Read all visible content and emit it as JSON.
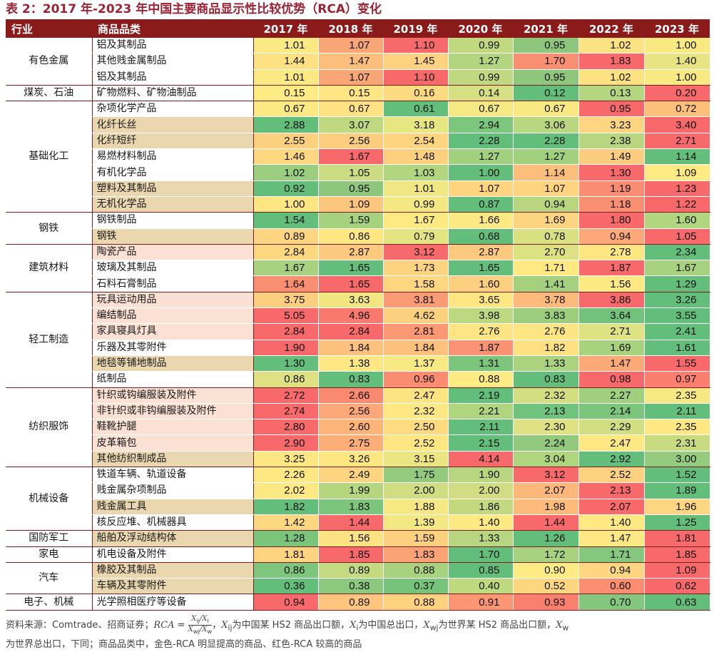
{
  "title": "表 2：2017 年-2023 年中国主要商品显示性比较优势（RCA）变化",
  "headers": [
    "行业",
    "商品品类",
    "2017 年",
    "2018 年",
    "2019 年",
    "2020 年",
    "2021 年",
    "2022 年",
    "2023 年"
  ],
  "groups": [
    {
      "industry": "有色金属",
      "rows": [
        {
          "product": "铝及其制品",
          "hl": "w",
          "values": [
            "1.01",
            "1.07",
            "1.10",
            "0.99",
            "0.95",
            "1.02",
            "1.00"
          ],
          "colors": [
            "#fbe983",
            "#f8a676",
            "#f8696b",
            "#c0d980",
            "#8ec67e",
            "#fde282",
            "#f9e983"
          ]
        },
        {
          "product": "其他贱金属制品",
          "hl": "w",
          "values": [
            "1.44",
            "1.47",
            "1.45",
            "1.27",
            "1.70",
            "1.83",
            "1.40"
          ],
          "colors": [
            "#fde182",
            "#fcbe7b",
            "#fed280",
            "#b4d57f",
            "#f98f71",
            "#f8696b",
            "#e8e483"
          ]
        },
        {
          "product": "铝及其制品",
          "hl": "w",
          "values": [
            "1.01",
            "1.07",
            "1.10",
            "0.99",
            "0.95",
            "1.02",
            "1.00"
          ],
          "colors": [
            "#fbe983",
            "#f8a676",
            "#f8696b",
            "#c0d980",
            "#8ec67e",
            "#fde282",
            "#f9e983"
          ]
        }
      ]
    },
    {
      "industry": "煤炭、石油",
      "rows": [
        {
          "product": "矿物燃料、矿物油制品",
          "hl": "w",
          "values": [
            "0.15",
            "0.15",
            "0.16",
            "0.14",
            "0.12",
            "0.13",
            "0.20"
          ],
          "colors": [
            "#ffeb84",
            "#ffe583",
            "#fedb81",
            "#d6df82",
            "#63be7b",
            "#b5d680",
            "#f8696b"
          ]
        }
      ]
    },
    {
      "industry": "基础化工",
      "rows": [
        {
          "product": "杂项化学产品",
          "hl": "w",
          "values": [
            "0.67",
            "0.67",
            "0.61",
            "0.67",
            "0.67",
            "0.95",
            "0.72"
          ],
          "colors": [
            "#fbe983",
            "#ffe383",
            "#63be7b",
            "#f5e984",
            "#f8e983",
            "#f8696b",
            "#fcc07b"
          ]
        },
        {
          "product": "化纤长丝",
          "hl": "g",
          "values": [
            "2.88",
            "3.07",
            "3.18",
            "2.94",
            "3.06",
            "3.23",
            "3.40"
          ],
          "colors": [
            "#63be7b",
            "#bfd980",
            "#e8e583",
            "#7dc67d",
            "#b9d780",
            "#fed580",
            "#f8696b"
          ]
        },
        {
          "product": "化纤短纤",
          "hl": "g",
          "values": [
            "2.55",
            "2.56",
            "2.54",
            "2.28",
            "2.28",
            "2.38",
            "2.71"
          ],
          "colors": [
            "#fbd07f",
            "#fccd7e",
            "#fdd580",
            "#63be7b",
            "#63be7b",
            "#b8d67f",
            "#f8696b"
          ]
        },
        {
          "product": "易燃材料制品",
          "hl": "w",
          "values": [
            "1.46",
            "1.67",
            "1.48",
            "1.27",
            "1.27",
            "1.49",
            "1.14"
          ],
          "colors": [
            "#fed881",
            "#f8696b",
            "#fdd07f",
            "#a1d07e",
            "#a1d07e",
            "#fccd7e",
            "#63be7b"
          ]
        },
        {
          "product": "有机化学品",
          "hl": "w",
          "values": [
            "1.02",
            "1.05",
            "1.03",
            "1.00",
            "1.14",
            "1.30",
            "1.09"
          ],
          "colors": [
            "#9bcf7f",
            "#ccdc82",
            "#b2d580",
            "#63be7b",
            "#fcbf7b",
            "#f8696b",
            "#ffea84"
          ]
        },
        {
          "product": "塑料及其制品",
          "hl": "g",
          "values": [
            "0.92",
            "0.95",
            "1.01",
            "1.07",
            "1.07",
            "1.19",
            "1.23"
          ],
          "colors": [
            "#63be7b",
            "#8ec67e",
            "#f0e683",
            "#fed480",
            "#fed480",
            "#fa8c71",
            "#f8696b"
          ]
        },
        {
          "product": "无机化学品",
          "hl": "g",
          "values": [
            "1.00",
            "1.09",
            "0.99",
            "0.87",
            "0.94",
            "1.18",
            "1.22"
          ],
          "colors": [
            "#fee683",
            "#fdc67d",
            "#f3e884",
            "#63be7b",
            "#b8d67f",
            "#fa8f72",
            "#f8696b"
          ]
        }
      ]
    },
    {
      "industry": "钢铁",
      "rows": [
        {
          "product": "钢铁制品",
          "hl": "w",
          "values": [
            "1.54",
            "1.59",
            "1.67",
            "1.66",
            "1.69",
            "1.80",
            "1.60"
          ],
          "colors": [
            "#63be7b",
            "#a6d27f",
            "#fee983",
            "#fde983",
            "#fdd480",
            "#f8696b",
            "#b2d580"
          ]
        },
        {
          "product": "钢铁",
          "hl": "g",
          "values": [
            "0.89",
            "0.86",
            "0.79",
            "0.68",
            "0.78",
            "0.94",
            "1.05"
          ],
          "colors": [
            "#fed581",
            "#fee683",
            "#e5e483",
            "#63be7b",
            "#d8e082",
            "#fca878",
            "#f8696b"
          ]
        }
      ]
    },
    {
      "industry": "建筑材料",
      "rows": [
        {
          "product": "陶瓷产品",
          "hl": "r",
          "values": [
            "2.84",
            "2.87",
            "3.12",
            "2.87",
            "2.70",
            "2.78",
            "2.34"
          ],
          "colors": [
            "#fed881",
            "#fdc97e",
            "#f8696b",
            "#fdc97e",
            "#dce182",
            "#fee783",
            "#63be7b"
          ]
        },
        {
          "product": "玻璃及其制品",
          "hl": "w",
          "values": [
            "1.67",
            "1.65",
            "1.73",
            "1.65",
            "1.71",
            "1.87",
            "1.67"
          ],
          "colors": [
            "#a8d27f",
            "#63be7b",
            "#fcd380",
            "#63be7b",
            "#fee983",
            "#f8696b",
            "#a8d27f"
          ]
        },
        {
          "product": "石料石膏制品",
          "hl": "w",
          "values": [
            "1.64",
            "1.65",
            "1.58",
            "1.60",
            "1.41",
            "1.56",
            "1.29"
          ],
          "colors": [
            "#f98f71",
            "#f8696b",
            "#fed680",
            "#fcd07f",
            "#a5d17e",
            "#fee983",
            "#63be7b"
          ]
        }
      ]
    },
    {
      "industry": "轻工制造",
      "rows": [
        {
          "product": "玩具运动用品",
          "hl": "r",
          "values": [
            "3.75",
            "3.63",
            "3.81",
            "3.65",
            "3.78",
            "3.86",
            "3.26"
          ],
          "colors": [
            "#fcce7f",
            "#f2e683",
            "#f99b74",
            "#fee683",
            "#fdba7b",
            "#f8696b",
            "#63be7b"
          ]
        },
        {
          "product": "编结制品",
          "hl": "r",
          "values": [
            "5.05",
            "4.96",
            "4.62",
            "3.98",
            "3.83",
            "3.64",
            "3.55"
          ],
          "colors": [
            "#f8696b",
            "#f9796e",
            "#fbd17f",
            "#bcd880",
            "#9cce7e",
            "#73c27c",
            "#63be7b"
          ]
        },
        {
          "product": "家具寝具灯具",
          "hl": "r",
          "values": [
            "2.84",
            "2.84",
            "2.81",
            "2.76",
            "2.76",
            "2.71",
            "2.41"
          ],
          "colors": [
            "#f8696b",
            "#f8696b",
            "#fa9973",
            "#fee583",
            "#fee583",
            "#dde282",
            "#63be7b"
          ]
        },
        {
          "product": "乐器及其零附件",
          "hl": "w",
          "values": [
            "1.90",
            "1.84",
            "1.84",
            "1.87",
            "1.82",
            "1.69",
            "1.61"
          ],
          "colors": [
            "#f8696b",
            "#fcc17c",
            "#fcc17c",
            "#fa9373",
            "#fee182",
            "#a9d27f",
            "#63be7b"
          ]
        },
        {
          "product": "地毯等铺地制品",
          "hl": "g",
          "values": [
            "1.30",
            "1.38",
            "1.37",
            "1.31",
            "1.33",
            "1.47",
            "1.55"
          ],
          "colors": [
            "#63be7b",
            "#ffe883",
            "#f9e983",
            "#7cc57d",
            "#abd37f",
            "#fca978",
            "#f8696b"
          ]
        },
        {
          "product": "纸制品",
          "hl": "w",
          "values": [
            "0.86",
            "0.83",
            "0.96",
            "0.88",
            "0.83",
            "0.98",
            "0.97"
          ],
          "colors": [
            "#dde182",
            "#63be7b",
            "#fa8c72",
            "#ffeb84",
            "#63be7b",
            "#f8696b",
            "#fb7e6e"
          ]
        }
      ]
    },
    {
      "industry": "纺织服饰",
      "rows": [
        {
          "product": "针织或钩编服装及附件",
          "hl": "r",
          "values": [
            "2.72",
            "2.66",
            "2.47",
            "2.19",
            "2.32",
            "2.27",
            "2.35"
          ],
          "colors": [
            "#f8696b",
            "#fa8971",
            "#fde482",
            "#63be7b",
            "#d3de82",
            "#a0d07e",
            "#f6e984"
          ]
        },
        {
          "product": "非针织或非钩编服装及附件",
          "hl": "r",
          "values": [
            "2.74",
            "2.56",
            "2.32",
            "2.21",
            "2.13",
            "2.14",
            "2.11"
          ],
          "colors": [
            "#f8696b",
            "#fca878",
            "#fee883",
            "#b0d57f",
            "#70c37c",
            "#7cc57d",
            "#63be7b"
          ]
        },
        {
          "product": "鞋靴护腿",
          "hl": "r",
          "values": [
            "2.80",
            "2.60",
            "2.50",
            "2.11",
            "2.30",
            "2.29",
            "2.35"
          ],
          "colors": [
            "#f8696b",
            "#fcb479",
            "#fedb81",
            "#63be7b",
            "#dfe282",
            "#d1de82",
            "#fee883"
          ]
        },
        {
          "product": "皮革箱包",
          "hl": "r",
          "values": [
            "2.90",
            "2.75",
            "2.52",
            "2.15",
            "2.24",
            "2.47",
            "2.31"
          ],
          "colors": [
            "#f8696b",
            "#fbae78",
            "#fee683",
            "#63be7b",
            "#92c97e",
            "#fee883",
            "#c8db81"
          ]
        },
        {
          "product": "其他纺织制成品",
          "hl": "g",
          "values": [
            "3.25",
            "3.26",
            "3.15",
            "4.14",
            "3.04",
            "2.92",
            "3.00"
          ],
          "colors": [
            "#fee783",
            "#fee683",
            "#ebe683",
            "#f8696b",
            "#b0d57f",
            "#63be7b",
            "#95cb7e"
          ]
        }
      ]
    },
    {
      "industry": "机械设备",
      "rows": [
        {
          "product": "铁道车辆、轨道设备",
          "hl": "w",
          "values": [
            "2.26",
            "2.49",
            "1.75",
            "1.90",
            "3.12",
            "2.52",
            "1.52"
          ],
          "colors": [
            "#fee883",
            "#fdd580",
            "#93ca7e",
            "#b8d67f",
            "#f8696b",
            "#fcd17f",
            "#63be7b"
          ]
        },
        {
          "product": "贱金属杂项制品",
          "hl": "w",
          "values": [
            "2.02",
            "1.99",
            "2.00",
            "2.00",
            "2.07",
            "2.13",
            "1.89"
          ],
          "colors": [
            "#fde983",
            "#b6d57f",
            "#d0dd82",
            "#d0dd82",
            "#fcb87a",
            "#f8696b",
            "#63be7b"
          ]
        },
        {
          "product": "贱金属工具",
          "hl": "g",
          "values": [
            "1.82",
            "1.83",
            "1.88",
            "1.86",
            "1.98",
            "2.07",
            "1.96"
          ],
          "colors": [
            "#63be7b",
            "#7cc57d",
            "#f6e984",
            "#c2d980",
            "#fcbb7b",
            "#f8696b",
            "#fdd681"
          ]
        },
        {
          "product": "核反应堆、机械器具",
          "hl": "w",
          "values": [
            "1.42",
            "1.44",
            "1.39",
            "1.40",
            "1.44",
            "1.40",
            "1.25"
          ],
          "colors": [
            "#fed881",
            "#f8696b",
            "#f4e884",
            "#fee983",
            "#f8696b",
            "#fee983",
            "#63be7b"
          ]
        }
      ]
    },
    {
      "industry": "国防军工",
      "rows": [
        {
          "product": "船舶及浮动结构体",
          "hl": "g",
          "values": [
            "1.28",
            "1.56",
            "1.59",
            "1.33",
            "1.26",
            "1.47",
            "1.81"
          ],
          "colors": [
            "#7ac47c",
            "#fde283",
            "#fcd07f",
            "#b8d680",
            "#63be7b",
            "#fee883",
            "#f8696b"
          ]
        }
      ]
    },
    {
      "industry": "家电",
      "rows": [
        {
          "product": "机电设备及附件",
          "hl": "w",
          "values": [
            "1.81",
            "1.85",
            "1.83",
            "1.70",
            "1.72",
            "1.71",
            "1.85"
          ],
          "colors": [
            "#fed480",
            "#f8696b",
            "#fba277",
            "#63be7b",
            "#a8d27f",
            "#85c77d",
            "#f8696b"
          ]
        }
      ]
    },
    {
      "industry": "汽车",
      "rows": [
        {
          "product": "橡胶及其制品",
          "hl": "g",
          "values": [
            "0.86",
            "0.89",
            "0.88",
            "0.85",
            "0.90",
            "0.94",
            "1.09"
          ],
          "colors": [
            "#7ec57d",
            "#c3da81",
            "#a8d27f",
            "#63be7b",
            "#ffeb84",
            "#fed681",
            "#f8696b"
          ]
        },
        {
          "product": "车辆及其零附件",
          "hl": "g",
          "values": [
            "0.36",
            "0.38",
            "0.37",
            "0.40",
            "0.52",
            "0.60",
            "0.62"
          ],
          "colors": [
            "#63be7b",
            "#8cc87d",
            "#78c37c",
            "#bfd980",
            "#fed680",
            "#fb8d71",
            "#f8696b"
          ]
        }
      ]
    },
    {
      "industry": "电子、机械",
      "rows": [
        {
          "product": "光学照相医疗等设备",
          "hl": "w",
          "values": [
            "0.94",
            "0.89",
            "0.88",
            "0.91",
            "0.93",
            "0.70",
            "0.63"
          ],
          "colors": [
            "#f8696b",
            "#fdc57d",
            "#fed380",
            "#fb9673",
            "#f97f6f",
            "#83c67d",
            "#63be7b"
          ]
        }
      ]
    }
  ],
  "note": {
    "line1_a": "资料来源：Comtrade、招商证券；",
    "rca": "RCA",
    "eq": " = ",
    "num": "X",
    "num_sub": "ij",
    "num2": "/X",
    "num2_sub": "i",
    "den": "X",
    "den_sub": "wj",
    "den2": "/X",
    "den2_sub": "w",
    "line1_b": "，",
    "xij": "X",
    "xij_sub": "ij",
    "line1_c": "为中国某 HS2 商品出口额，",
    "xi": "X",
    "xi_sub": "i",
    "line1_d": "为中国总出口，",
    "xwj": "X",
    "xwj_sub": "wj",
    "line1_e": "为世界某 HS2 商品出口额，",
    "xw": "X",
    "xw_sub": "w",
    "line2": "为世界总出口，下同；商品品类中，金色-RCA 明显提高的商品、红色-RCA 较高的商品"
  }
}
